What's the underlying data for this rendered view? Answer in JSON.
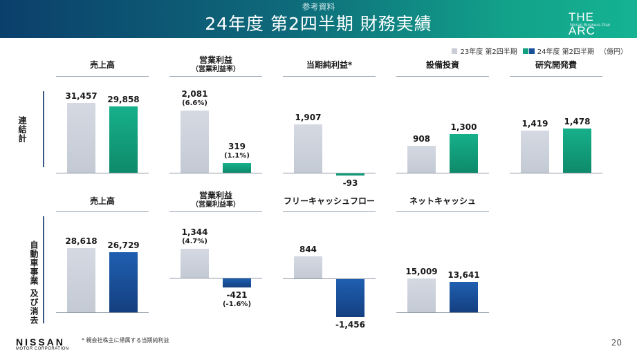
{
  "header": {
    "sup": "参考資料",
    "title": "24年度 第2四半期 財務実績",
    "logo_main": "THE ARC",
    "logo_sub": "Nissan Business Plan"
  },
  "legend": {
    "prev": "23年度 第2四半期",
    "cur": "24年度 第2四半期",
    "unit": "（億円）"
  },
  "colors": {
    "prev": "#c8cdd6",
    "consolidated": "#12a07e",
    "automotive": "#1a4f99"
  },
  "row_labels": {
    "consolidated": "連結計",
    "automotive": "自動車事業 及び消去"
  },
  "chart_data": [
    {
      "type": "bar",
      "row": "consolidated",
      "title": "売上高",
      "subtitle": "",
      "series": [
        {
          "name": "23年度 第2四半期",
          "value": 31457,
          "label": "31,457"
        },
        {
          "name": "24年度 第2四半期",
          "value": 29858,
          "label": "29,858"
        }
      ]
    },
    {
      "type": "bar",
      "row": "consolidated",
      "title": "営業利益",
      "subtitle": "（営業利益率）",
      "series": [
        {
          "name": "23年度 第2四半期",
          "value": 2081,
          "label": "2,081",
          "pct": "(6.6%)"
        },
        {
          "name": "24年度 第2四半期",
          "value": 319,
          "label": "319",
          "pct": "(1.1%)"
        }
      ]
    },
    {
      "type": "bar",
      "row": "consolidated",
      "title": "当期純利益*",
      "subtitle": "",
      "series": [
        {
          "name": "23年度 第2四半期",
          "value": 1907,
          "label": "1,907"
        },
        {
          "name": "24年度 第2四半期",
          "value": -93,
          "label": "-93"
        }
      ]
    },
    {
      "type": "bar",
      "row": "consolidated",
      "title": "設備投資",
      "subtitle": "",
      "series": [
        {
          "name": "23年度 第2四半期",
          "value": 908,
          "label": "908"
        },
        {
          "name": "24年度 第2四半期",
          "value": 1300,
          "label": "1,300"
        }
      ]
    },
    {
      "type": "bar",
      "row": "consolidated",
      "title": "研究開発費",
      "subtitle": "",
      "series": [
        {
          "name": "23年度 第2四半期",
          "value": 1419,
          "label": "1,419"
        },
        {
          "name": "24年度 第2四半期",
          "value": 1478,
          "label": "1,478"
        }
      ]
    },
    {
      "type": "bar",
      "row": "automotive",
      "title": "売上高",
      "subtitle": "",
      "series": [
        {
          "name": "23年度 第2四半期",
          "value": 28618,
          "label": "28,618"
        },
        {
          "name": "24年度 第2四半期",
          "value": 26729,
          "label": "26,729"
        }
      ]
    },
    {
      "type": "bar",
      "row": "automotive",
      "title": "営業利益",
      "subtitle": "（営業利益率）",
      "series": [
        {
          "name": "23年度 第2四半期",
          "value": 1344,
          "label": "1,344",
          "pct": "(4.7%)"
        },
        {
          "name": "24年度 第2四半期",
          "value": -421,
          "label": "-421",
          "pct": "(-1.6%)"
        }
      ]
    },
    {
      "type": "bar",
      "row": "automotive",
      "title": "フリーキャッシュフロー",
      "subtitle": "",
      "series": [
        {
          "name": "23年度 第2四半期",
          "value": 844,
          "label": "844"
        },
        {
          "name": "24年度 第2四半期",
          "value": -1456,
          "label": "-1,456"
        }
      ]
    },
    {
      "type": "bar",
      "row": "automotive",
      "title": "ネットキャッシュ",
      "subtitle": "",
      "series": [
        {
          "name": "23年度 第2四半期",
          "value": 15009,
          "label": "15,009"
        },
        {
          "name": "24年度 第2四半期",
          "value": 13641,
          "label": "13,641"
        }
      ]
    }
  ],
  "footnote": "* 親会社株主に帰属する当期純利益",
  "brand": {
    "name": "NISSAN",
    "sub": "MOTOR CORPORATION"
  },
  "page_number": "20"
}
